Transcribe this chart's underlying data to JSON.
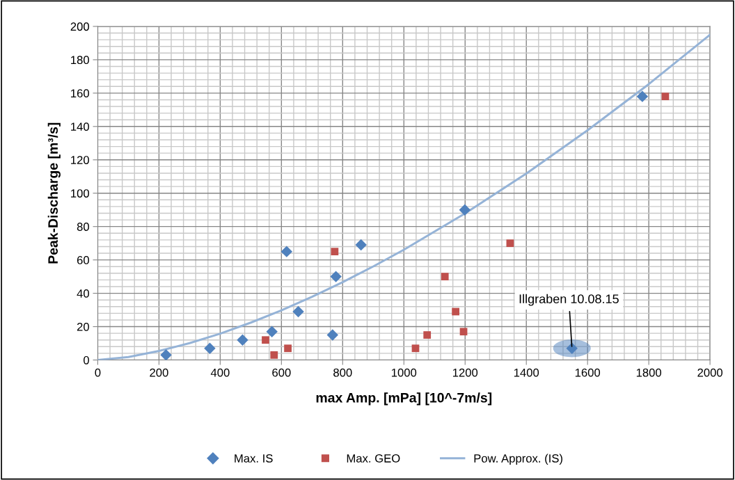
{
  "chart_data": {
    "type": "scatter",
    "xlabel": "max Amp. [mPa] [10^-7m/s]",
    "ylabel": "Peak-Discharge [m³/s]",
    "xlim": [
      0,
      2000
    ],
    "xticks": [
      0,
      200,
      400,
      600,
      800,
      1000,
      1200,
      1400,
      1600,
      1800,
      2000
    ],
    "ylim": [
      0,
      200
    ],
    "yticks": [
      0,
      20,
      40,
      60,
      80,
      100,
      120,
      140,
      160,
      180,
      200
    ],
    "grid": true,
    "legend": "bottom",
    "series": [
      {
        "name": "Max. IS",
        "marker": "diamond",
        "color": "#4f81bd",
        "x": [
          223,
          366,
          473,
          569,
          655,
          617,
          778,
          767,
          860,
          1199,
          1549,
          1779
        ],
        "values": [
          3,
          7,
          12,
          17,
          29,
          65,
          50,
          15,
          69,
          90,
          7,
          158
        ]
      },
      {
        "name": "Max. GEO",
        "marker": "square",
        "color": "#c0504d",
        "x": [
          548,
          576,
          621,
          774,
          1038,
          1076,
          1134,
          1169,
          1195,
          1347,
          1854
        ],
        "values": [
          12,
          3,
          7,
          65,
          7,
          15,
          50,
          29,
          17,
          70,
          158
        ]
      },
      {
        "name": "Pow. Approx. (IS)",
        "type": "line",
        "marker": "none",
        "color": "#95b3d7",
        "x": [
          0,
          100,
          200,
          300,
          400,
          500,
          600,
          700,
          800,
          900,
          1000,
          1200,
          1400,
          1600,
          1800,
          2000
        ],
        "values": [
          0,
          1.8,
          5.4,
          10.1,
          15.8,
          22.4,
          29.8,
          37.9,
          46.7,
          56.1,
          66.1,
          87.9,
          111.8,
          137.7,
          165.4,
          195
        ]
      }
    ],
    "annotations": [
      {
        "text": "Illgraben 10.08.15",
        "x": 1549,
        "y": 7
      }
    ]
  }
}
